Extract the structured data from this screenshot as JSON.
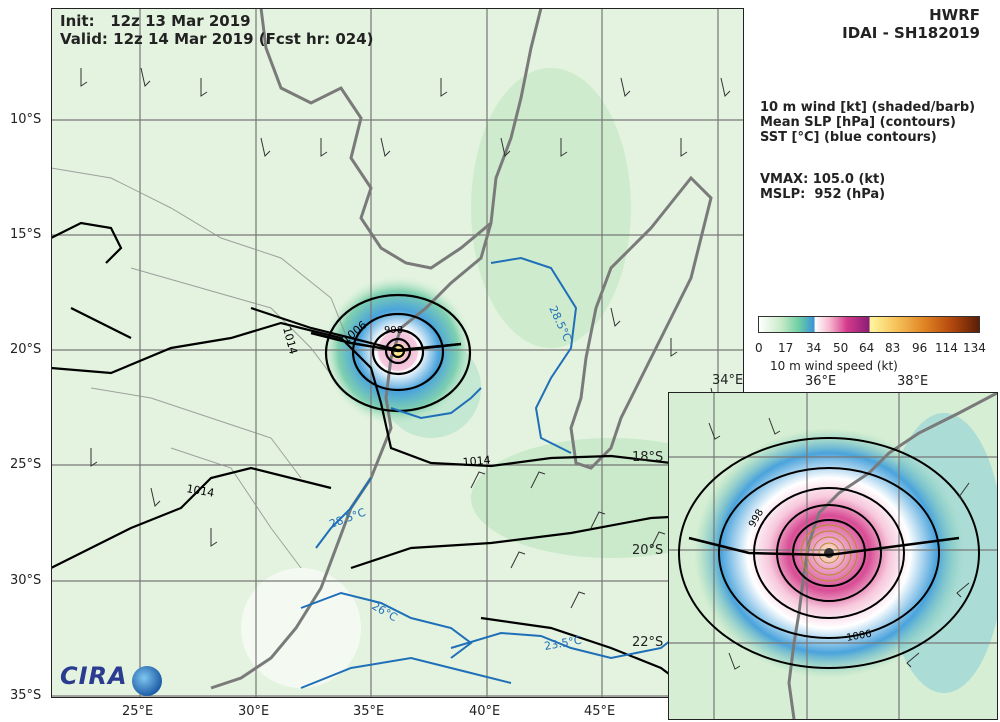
{
  "header": {
    "init_label": "Init:",
    "init_value": "12z 13 Mar 2019",
    "valid_label": "Valid:",
    "valid_value": "12z 14 Mar 2019 (Fcst hr: 024)",
    "model": "HWRF",
    "storm": "IDAI - SH182019"
  },
  "legend_text": {
    "line1": "10 m wind [kt] (shaded/barb)",
    "line2": "Mean SLP [hPa] (contours)",
    "line3": "SST [°C] (blue contours)"
  },
  "stats": {
    "vmax": "VMAX: 105.0 (kt)",
    "mslp": "MSLP:  952 (hPa)"
  },
  "colorbar": {
    "ticks": [
      "0",
      "17",
      "34",
      "50",
      "64",
      "83",
      "96",
      "114",
      "134"
    ],
    "title": "10 m wind speed (kt)"
  },
  "main_axes": {
    "lat_labels": [
      "10°S",
      "15°S",
      "20°S",
      "25°S",
      "30°S",
      "35°S"
    ],
    "lon_labels": [
      "25°E",
      "30°E",
      "35°E",
      "40°E",
      "45°E"
    ]
  },
  "inset_axes": {
    "lon_labels": [
      "36°E",
      "38°E"
    ],
    "lat_labels": [
      "18°S",
      "20°S",
      "22°S"
    ],
    "corner_lon": "34°E"
  },
  "contour_labels": {
    "slp": [
      "1006",
      "1014",
      "1014",
      "1014",
      "998",
      "1006"
    ],
    "sst": [
      "28.5°C",
      "28.5°C",
      "26°C",
      "23.5°C"
    ]
  },
  "logo": "CIRA",
  "colors": {
    "land_gray": "#7a7a7a",
    "slp_contour": "#000000",
    "sst_contour": "#1f6fb8",
    "grid": "#777777"
  }
}
